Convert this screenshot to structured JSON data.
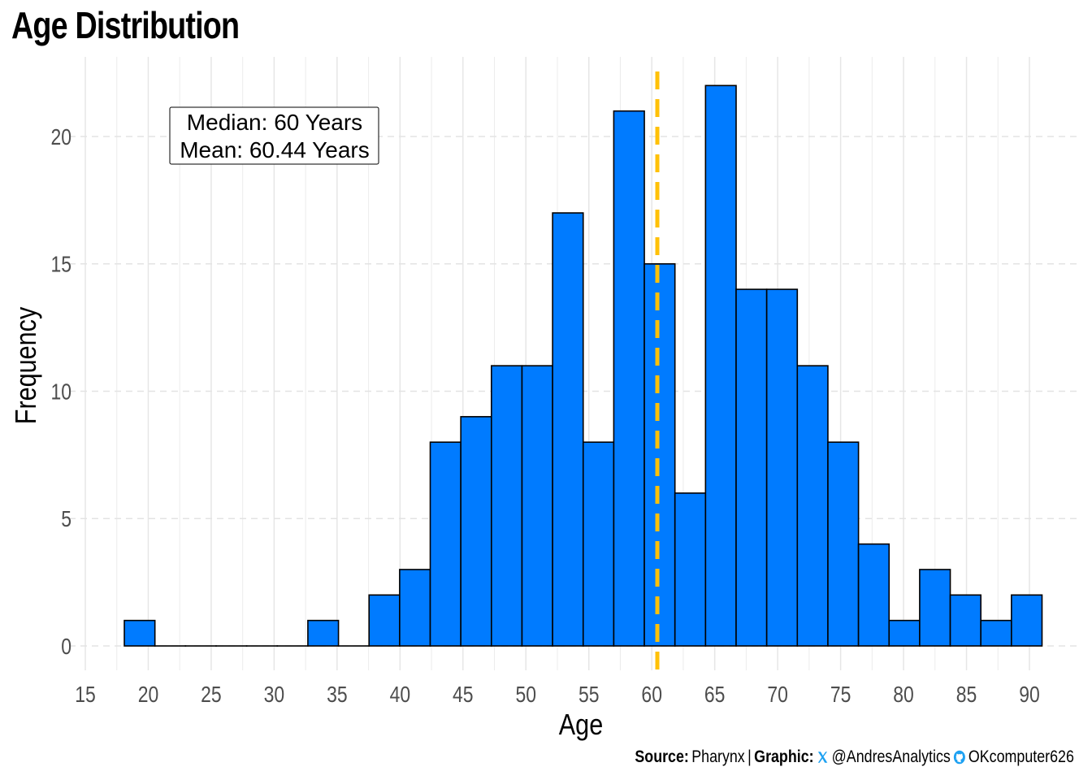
{
  "chart_data": {
    "type": "bar",
    "title": "Age Distribution",
    "xlabel": "Age",
    "ylabel": "Frequency",
    "xlim": [
      15,
      91
    ],
    "ylim": [
      0,
      22
    ],
    "x_ticks": [
      15,
      20,
      25,
      30,
      35,
      40,
      45,
      50,
      55,
      60,
      65,
      70,
      75,
      80,
      85,
      90
    ],
    "y_ticks": [
      0,
      5,
      10,
      15,
      20
    ],
    "bin_width": 2.43,
    "bin_start": 18.1,
    "values": [
      1,
      0,
      0,
      0,
      0,
      0,
      1,
      0,
      2,
      3,
      8,
      9,
      11,
      11,
      17,
      8,
      21,
      15,
      6,
      22,
      14,
      14,
      11,
      8,
      4,
      1,
      3,
      2,
      1,
      2
    ],
    "bar_color": "#007BFF",
    "mean_line": {
      "value": 60.44,
      "color": "#FFC107"
    },
    "annotation": {
      "line1": "Median: 60 Years",
      "line2": "Mean: 60.44 Years"
    },
    "grid": true
  },
  "caption": {
    "source_label": "Source:",
    "source_value": "Pharynx",
    "separator": "|",
    "graphic_label": "Graphic:",
    "x_handle": "@AndresAnalytics",
    "github_handle": "OKcomputer626",
    "x_icon": "x-logo-icon",
    "github_icon": "github-icon"
  }
}
